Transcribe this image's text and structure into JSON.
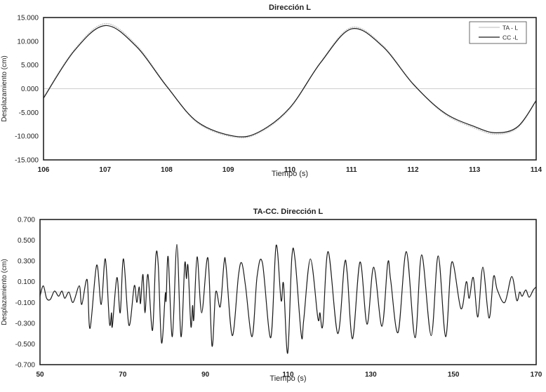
{
  "chart_data": [
    {
      "type": "line",
      "title": "Dirección L",
      "xlabel": "Tiempo (s)",
      "ylabel": "Desplazamiento (cm)",
      "xlim": [
        106,
        114
      ],
      "ylim": [
        -15,
        15
      ],
      "xticks": [
        "106",
        "107",
        "108",
        "109",
        "110",
        "111",
        "112",
        "113",
        "114"
      ],
      "yticks": [
        "15.000",
        "10.000",
        "5.000",
        "0.000",
        "-5.000",
        "-10.000",
        "-15.000"
      ],
      "grid": false,
      "zero_line": true,
      "legend": "top-right",
      "series": [
        {
          "name": "TA - L",
          "color": "#c8c8c8",
          "dashed": true,
          "x": [
            106,
            106.5,
            107.0,
            107.5,
            108,
            108.5,
            109.1,
            109.5,
            110,
            110.5,
            111,
            111.5,
            112,
            112.5,
            113,
            113.35,
            113.7,
            114
          ],
          "y": [
            -1.8,
            8.2,
            13.7,
            9.3,
            0.6,
            -7.2,
            -10.2,
            -9.3,
            -4.2,
            5.6,
            12.9,
            9.2,
            1.1,
            -5.2,
            -8.3,
            -9.6,
            -8.2,
            -2.5
          ]
        },
        {
          "name": "CC -L",
          "color": "#1a1a1a",
          "dashed": false,
          "x": [
            106,
            106.5,
            107.0,
            107.5,
            108,
            108.5,
            109.1,
            109.5,
            110,
            110.5,
            111,
            111.5,
            112,
            112.5,
            113,
            113.35,
            113.7,
            114
          ],
          "y": [
            -2.0,
            8.0,
            13.3,
            9.0,
            0.5,
            -7.0,
            -10.0,
            -9.1,
            -4.0,
            5.5,
            12.6,
            9.0,
            1.0,
            -5.0,
            -8.0,
            -9.3,
            -8.0,
            -2.5
          ]
        }
      ]
    },
    {
      "type": "line",
      "title": "TA-CC. Dirección L",
      "xlabel": "Tiempo (s)",
      "ylabel": "Desplazamiento (cm)",
      "xlim": [
        50,
        170
      ],
      "ylim": [
        -0.7,
        0.7
      ],
      "xticks": [
        "50",
        "70",
        "90",
        "110",
        "130",
        "150",
        "170"
      ],
      "yticks": [
        "0.700",
        "0.500",
        "0.300",
        "0.100",
        "-0.100",
        "-0.300",
        "-0.500",
        "-0.700"
      ],
      "grid": false,
      "zero_line": true,
      "series": [
        {
          "color": "#1a1a1a",
          "x": [
            50,
            50.8,
            51.6,
            52.5,
            53.5,
            54.5,
            55.3,
            56,
            57,
            58,
            59.5,
            60.1,
            61.4,
            62.1,
            63.7,
            64.8,
            65.8,
            66.8,
            67.3,
            67.5,
            68.6,
            69.4,
            70.2,
            71.5,
            72.8,
            73.4,
            74,
            74.3,
            74.9,
            75.4,
            76.1,
            77.2,
            78,
            78.6,
            79.4,
            80.3,
            80.5,
            81,
            82,
            83.1,
            84.1,
            85,
            85.4,
            85.8,
            86.5,
            86.9,
            87.2,
            88,
            89.1,
            90.6,
            91.6,
            92.5,
            93.6,
            94.5,
            95,
            96.5,
            98,
            98.8,
            99.7,
            101.3,
            102.5,
            103.8,
            105.8,
            107.1,
            108.3,
            108.9,
            109.9,
            110.9,
            111.7,
            113.2,
            113.8,
            115.4,
            117.2,
            117.7,
            118.4,
            119.7,
            122,
            123.6,
            124.3,
            125.6,
            127.4,
            129.1,
            130.7,
            132.7,
            134.1,
            134.8,
            136.6,
            138.6,
            140.7,
            142.3,
            144.6,
            146.3,
            148.1,
            149.6,
            151.8,
            153.1,
            153.8,
            154.8,
            155.9,
            157.1,
            158.6,
            159.7,
            160.6,
            162.4,
            164.1,
            165.3,
            166,
            166.6,
            167.5,
            168.3,
            169.3,
            170
          ],
          "y": [
            -0.04,
            0.06,
            -0.06,
            -0.07,
            0.01,
            -0.04,
            0.01,
            -0.06,
            0.0,
            -0.1,
            0.06,
            -0.12,
            0.12,
            -0.35,
            0.26,
            -0.12,
            0.32,
            -0.3,
            -0.2,
            -0.33,
            0.14,
            -0.2,
            0.32,
            -0.32,
            0.06,
            -0.1,
            0.05,
            -0.11,
            0.17,
            -0.2,
            0.17,
            -0.37,
            0.34,
            0.26,
            -0.49,
            -0.02,
            -0.08,
            0.34,
            -0.43,
            0.46,
            -0.43,
            0.27,
            0.13,
            0.25,
            -0.33,
            -0.13,
            -0.26,
            0.34,
            -0.2,
            0.33,
            -0.52,
            0.0,
            -0.14,
            0.28,
            0.25,
            -0.42,
            0.16,
            0.28,
            0.06,
            -0.43,
            0.15,
            0.28,
            -0.44,
            0.45,
            -0.08,
            0.08,
            -0.59,
            0.33,
            0.31,
            -0.42,
            -0.26,
            0.32,
            -0.25,
            -0.2,
            -0.32,
            0.39,
            -0.4,
            0.26,
            0.18,
            -0.45,
            0.29,
            -0.31,
            0.24,
            -0.33,
            0.28,
            0.12,
            -0.39,
            0.39,
            -0.44,
            0.36,
            -0.42,
            0.35,
            -0.43,
            0.29,
            -0.16,
            0.1,
            -0.06,
            0.14,
            -0.24,
            0.24,
            -0.25,
            0.15,
            0.02,
            -0.1,
            0.15,
            -0.08,
            0.0,
            -0.04,
            0.02,
            -0.05,
            0.02,
            0.05
          ]
        }
      ]
    }
  ]
}
